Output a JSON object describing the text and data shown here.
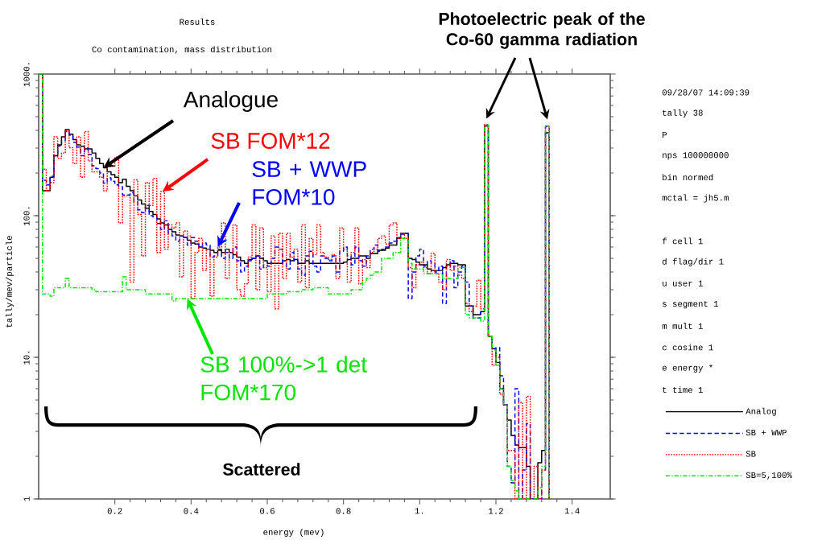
{
  "chart_data": {
    "type": "step",
    "title": "Results",
    "subtitle": "Co contamination, mass distribution",
    "xlabel": "energy (mev)",
    "ylabel": "tally/mev/particle",
    "x": [
      0,
      0.01,
      0.02,
      0.03,
      0.04,
      0.05,
      0.06,
      0.07,
      0.08,
      0.09,
      0.1,
      0.11,
      0.12,
      0.13,
      0.14,
      0.15,
      0.16,
      0.17,
      0.18,
      0.19,
      0.2,
      0.21,
      0.22,
      0.23,
      0.24,
      0.25,
      0.26,
      0.27,
      0.28,
      0.29,
      0.3,
      0.31,
      0.32,
      0.33,
      0.34,
      0.35,
      0.36,
      0.37,
      0.38,
      0.39,
      0.4,
      0.41,
      0.42,
      0.43,
      0.44,
      0.45,
      0.46,
      0.47,
      0.48,
      0.49,
      0.5,
      0.51,
      0.52,
      0.53,
      0.54,
      0.55,
      0.56,
      0.57,
      0.58,
      0.59,
      0.6,
      0.61,
      0.62,
      0.63,
      0.64,
      0.65,
      0.66,
      0.67,
      0.68,
      0.69,
      0.7,
      0.71,
      0.72,
      0.73,
      0.74,
      0.75,
      0.76,
      0.77,
      0.78,
      0.79,
      0.8,
      0.81,
      0.82,
      0.83,
      0.84,
      0.85,
      0.86,
      0.87,
      0.88,
      0.89,
      0.9,
      0.91,
      0.92,
      0.93,
      0.94,
      0.95,
      0.96,
      0.97,
      0.98,
      0.99,
      1,
      1.01,
      1.02,
      1.03,
      1.04,
      1.05,
      1.06,
      1.07,
      1.08,
      1.09,
      1.1,
      1.11,
      1.12,
      1.13,
      1.14,
      1.15,
      1.16,
      1.17,
      1.18,
      1.19,
      1.2,
      1.21,
      1.22,
      1.23,
      1.24,
      1.25,
      1.26,
      1.27,
      1.28,
      1.29,
      1.3,
      1.31,
      1.32,
      1.33,
      1.34
    ],
    "series": [
      {
        "name": "Analog",
        "color": "#000000",
        "line_style": "solid",
        "values": [
          1000,
          150,
          150,
          187,
          265,
          316,
          360,
          405,
          376,
          344,
          316,
          309,
          296,
          296,
          277,
          254,
          233,
          218,
          204,
          195,
          187,
          171,
          181,
          161,
          150,
          138,
          129,
          121,
          113,
          107,
          102,
          95,
          89,
          86,
          80,
          77,
          73,
          72,
          70,
          67,
          64,
          63,
          60,
          59,
          58,
          57,
          55,
          57,
          55,
          58,
          55,
          53,
          51,
          48,
          46,
          49,
          50,
          52,
          50,
          48,
          46,
          46,
          46,
          46,
          48,
          49,
          48,
          49,
          46,
          46,
          48,
          46,
          46,
          46,
          46,
          46,
          46,
          46,
          46,
          46,
          47,
          49,
          50,
          50,
          52,
          52,
          50,
          54,
          54,
          57,
          57,
          59,
          62,
          62,
          69,
          75,
          75,
          50,
          49,
          47,
          45,
          45,
          42,
          41,
          41,
          41,
          43,
          45,
          46,
          46,
          45,
          45,
          23,
          23,
          20,
          20,
          21,
          430,
          14,
          11.5,
          9.2,
          6,
          4.6,
          3.6,
          2.8,
          2.4,
          2.3,
          2.3,
          1.7,
          1,
          1,
          1.8,
          2.2,
          385,
          1
        ]
      },
      {
        "name": "SB + WWP",
        "color": "#0000ff",
        "line_style": "dashed",
        "values": [
          1000,
          178,
          165,
          190,
          265,
          310,
          340,
          392,
          370,
          330,
          305,
          265,
          300,
          270,
          225,
          215,
          200,
          170,
          185,
          175,
          165,
          160,
          140,
          140,
          145,
          125,
          110,
          105,
          118,
          100,
          98,
          88,
          80,
          92,
          75,
          72,
          66,
          72,
          70,
          62,
          70,
          66,
          60,
          64,
          62,
          51,
          52,
          58,
          50,
          55,
          50,
          60,
          48,
          40,
          44,
          48,
          50,
          52,
          42,
          45,
          44,
          50,
          60,
          58,
          46,
          42,
          55,
          48,
          42,
          38,
          52,
          56,
          44,
          40,
          52,
          50,
          48,
          52,
          40,
          56,
          60,
          52,
          45,
          60,
          48,
          44,
          52,
          58,
          62,
          56,
          58,
          60,
          64,
          66,
          70,
          74,
          75,
          26,
          40,
          52,
          58,
          44,
          48,
          46,
          40,
          44,
          24,
          44,
          48,
          31,
          40,
          44,
          34,
          23,
          19,
          19,
          21,
          436,
          14,
          11.5,
          11.7,
          7.4,
          4.6,
          1.7,
          1.3,
          6,
          1,
          1.6,
          3.4,
          1,
          1,
          1,
          1.6,
          426,
          1
        ]
      },
      {
        "name": "SB",
        "color": "#ff0000",
        "line_style": "dotted",
        "values": [
          1000,
          213,
          150,
          171,
          360,
          254,
          277,
          400,
          302,
          233,
          360,
          187,
          392,
          243,
          204,
          204,
          187,
          150,
          223,
          223,
          259,
          89,
          138,
          138,
          34,
          179,
          102,
          52,
          171,
          118,
          183,
          55,
          148,
          58,
          86,
          82,
          89,
          37,
          78,
          72,
          26,
          55,
          69,
          41,
          58,
          27,
          51,
          60,
          89,
          36,
          55,
          86,
          30,
          27,
          33,
          51,
          86,
          30,
          82,
          43,
          29,
          72,
          22,
          75,
          36,
          75,
          51,
          58,
          34,
          86,
          31,
          69,
          53,
          86,
          55,
          51,
          49,
          53,
          36,
          82,
          58,
          34,
          55,
          82,
          33,
          49,
          43,
          55,
          58,
          69,
          72,
          63,
          86,
          89,
          69,
          75,
          69,
          43,
          31,
          45,
          47,
          43,
          39,
          54,
          39,
          34,
          30,
          49,
          41,
          44,
          38,
          36,
          24,
          21,
          23,
          35,
          22,
          440,
          14,
          8.8,
          10,
          5.5,
          4.6,
          2.2,
          2.2,
          1,
          4.8,
          1,
          5.3,
          1,
          1.7,
          1,
          1.6,
          430,
          1
        ]
      },
      {
        "name": "SB=5,100%",
        "color": "#00e600",
        "line_style": "dashdotted",
        "values": [
          1000,
          28,
          28,
          27,
          31,
          31,
          31,
          36,
          31,
          31,
          31,
          31,
          31,
          31,
          30,
          29,
          29,
          29,
          29,
          29,
          29,
          29,
          37,
          30,
          30,
          30,
          30,
          30,
          28,
          28,
          28,
          28,
          28,
          28,
          28,
          25,
          26,
          26,
          26,
          26,
          26,
          26,
          26,
          26,
          26,
          26,
          26,
          26,
          26,
          26,
          26,
          26,
          26,
          26,
          26,
          26,
          26,
          26,
          26,
          26,
          28,
          28,
          28,
          28,
          28,
          29,
          29,
          29,
          29,
          30,
          30,
          30,
          31,
          31,
          31,
          31,
          28,
          28,
          28,
          28,
          28,
          28,
          30,
          30,
          30,
          34,
          36,
          38,
          40,
          40,
          50,
          50,
          50,
          55,
          55,
          69,
          69,
          46,
          42,
          42,
          42,
          39,
          39,
          39,
          39,
          39,
          36,
          36,
          36,
          36,
          43,
          43,
          20,
          19,
          19,
          19,
          18,
          436,
          14,
          11.3,
          8.8,
          6,
          4.6,
          1.7,
          1.35,
          1.14,
          1,
          1,
          1,
          1,
          1,
          1.2,
          1.7,
          430,
          1
        ]
      }
    ],
    "xlim": [
      0,
      1.5
    ],
    "xticks": [
      0.2,
      0.4,
      0.6,
      0.8,
      {
        "value": 1,
        "label": "1."
      },
      1.2,
      1.4
    ],
    "ylim": [
      1,
      1000
    ],
    "yticks": [
      1,
      {
        "value": 10,
        "label": "10."
      },
      {
        "value": 100,
        "label": "100."
      },
      {
        "value": 1000,
        "label": "1000."
      }
    ],
    "log": "y",
    "legend": "right",
    "annotations": [
      {
        "text": "Analogue",
        "x": 0.17,
        "y": 218
      },
      {
        "text": "SB FOM*12",
        "x": 0.325,
        "y": 148
      },
      {
        "text": "SB + WWP FOM*10",
        "x": 0.47,
        "y": 60
      },
      {
        "text": "SB 100%->1 det FOM*170",
        "x": 0.39,
        "y": 26
      },
      "Photoelectric peak of the Co-60 gamma radiation",
      "Scattered",
      "09/28/07 14:09:39",
      "tally 38",
      "P",
      "nps 100000000",
      "bin normed",
      "mctal = jh5.m",
      "f cell 1",
      "d flag/dir 1",
      "u user 1",
      "s segment 1",
      "m mult 1",
      "c cosine 1",
      "e energy *",
      "t time 1"
    ]
  }
}
